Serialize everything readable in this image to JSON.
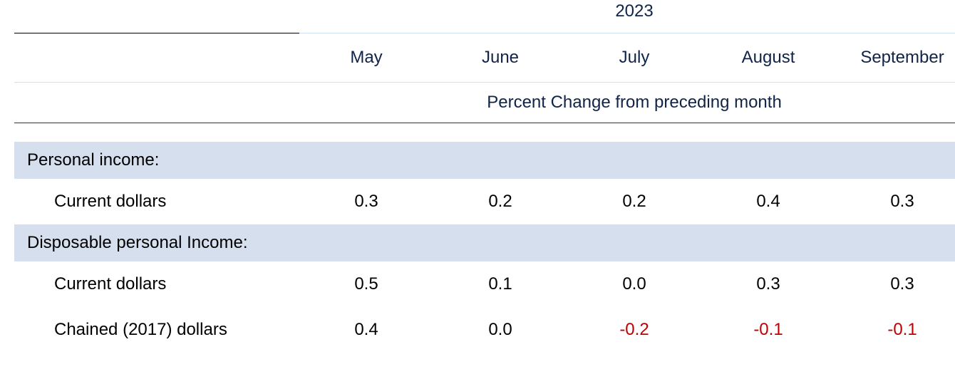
{
  "header": {
    "year": "2023",
    "months": [
      "May",
      "June",
      "July",
      "August",
      "September"
    ],
    "subtitle": "Percent Change from preceding month"
  },
  "colors": {
    "header_text": "#10244a",
    "header_rule": "#cfe2f3",
    "bottom_rule": "#333333",
    "section_bg": "#d6dfed",
    "negative": "#c00000",
    "positive": "#000000"
  },
  "sections": [
    {
      "label": "Personal income:",
      "rows": [
        {
          "label": "Current dollars",
          "values": [
            "0.3",
            "0.2",
            "0.2",
            "0.4",
            "0.3"
          ],
          "neg": [
            false,
            false,
            false,
            false,
            false
          ]
        }
      ]
    },
    {
      "label": "Disposable personal Income:",
      "rows": [
        {
          "label": "Current dollars",
          "values": [
            "0.5",
            "0.1",
            "0.0",
            "0.3",
            "0.3"
          ],
          "neg": [
            false,
            false,
            false,
            false,
            false
          ]
        },
        {
          "label": "Chained (2017) dollars",
          "values": [
            "0.4",
            "0.0",
            "-0.2",
            "-0.1",
            "-0.1"
          ],
          "neg": [
            false,
            false,
            true,
            true,
            true
          ]
        }
      ]
    }
  ]
}
